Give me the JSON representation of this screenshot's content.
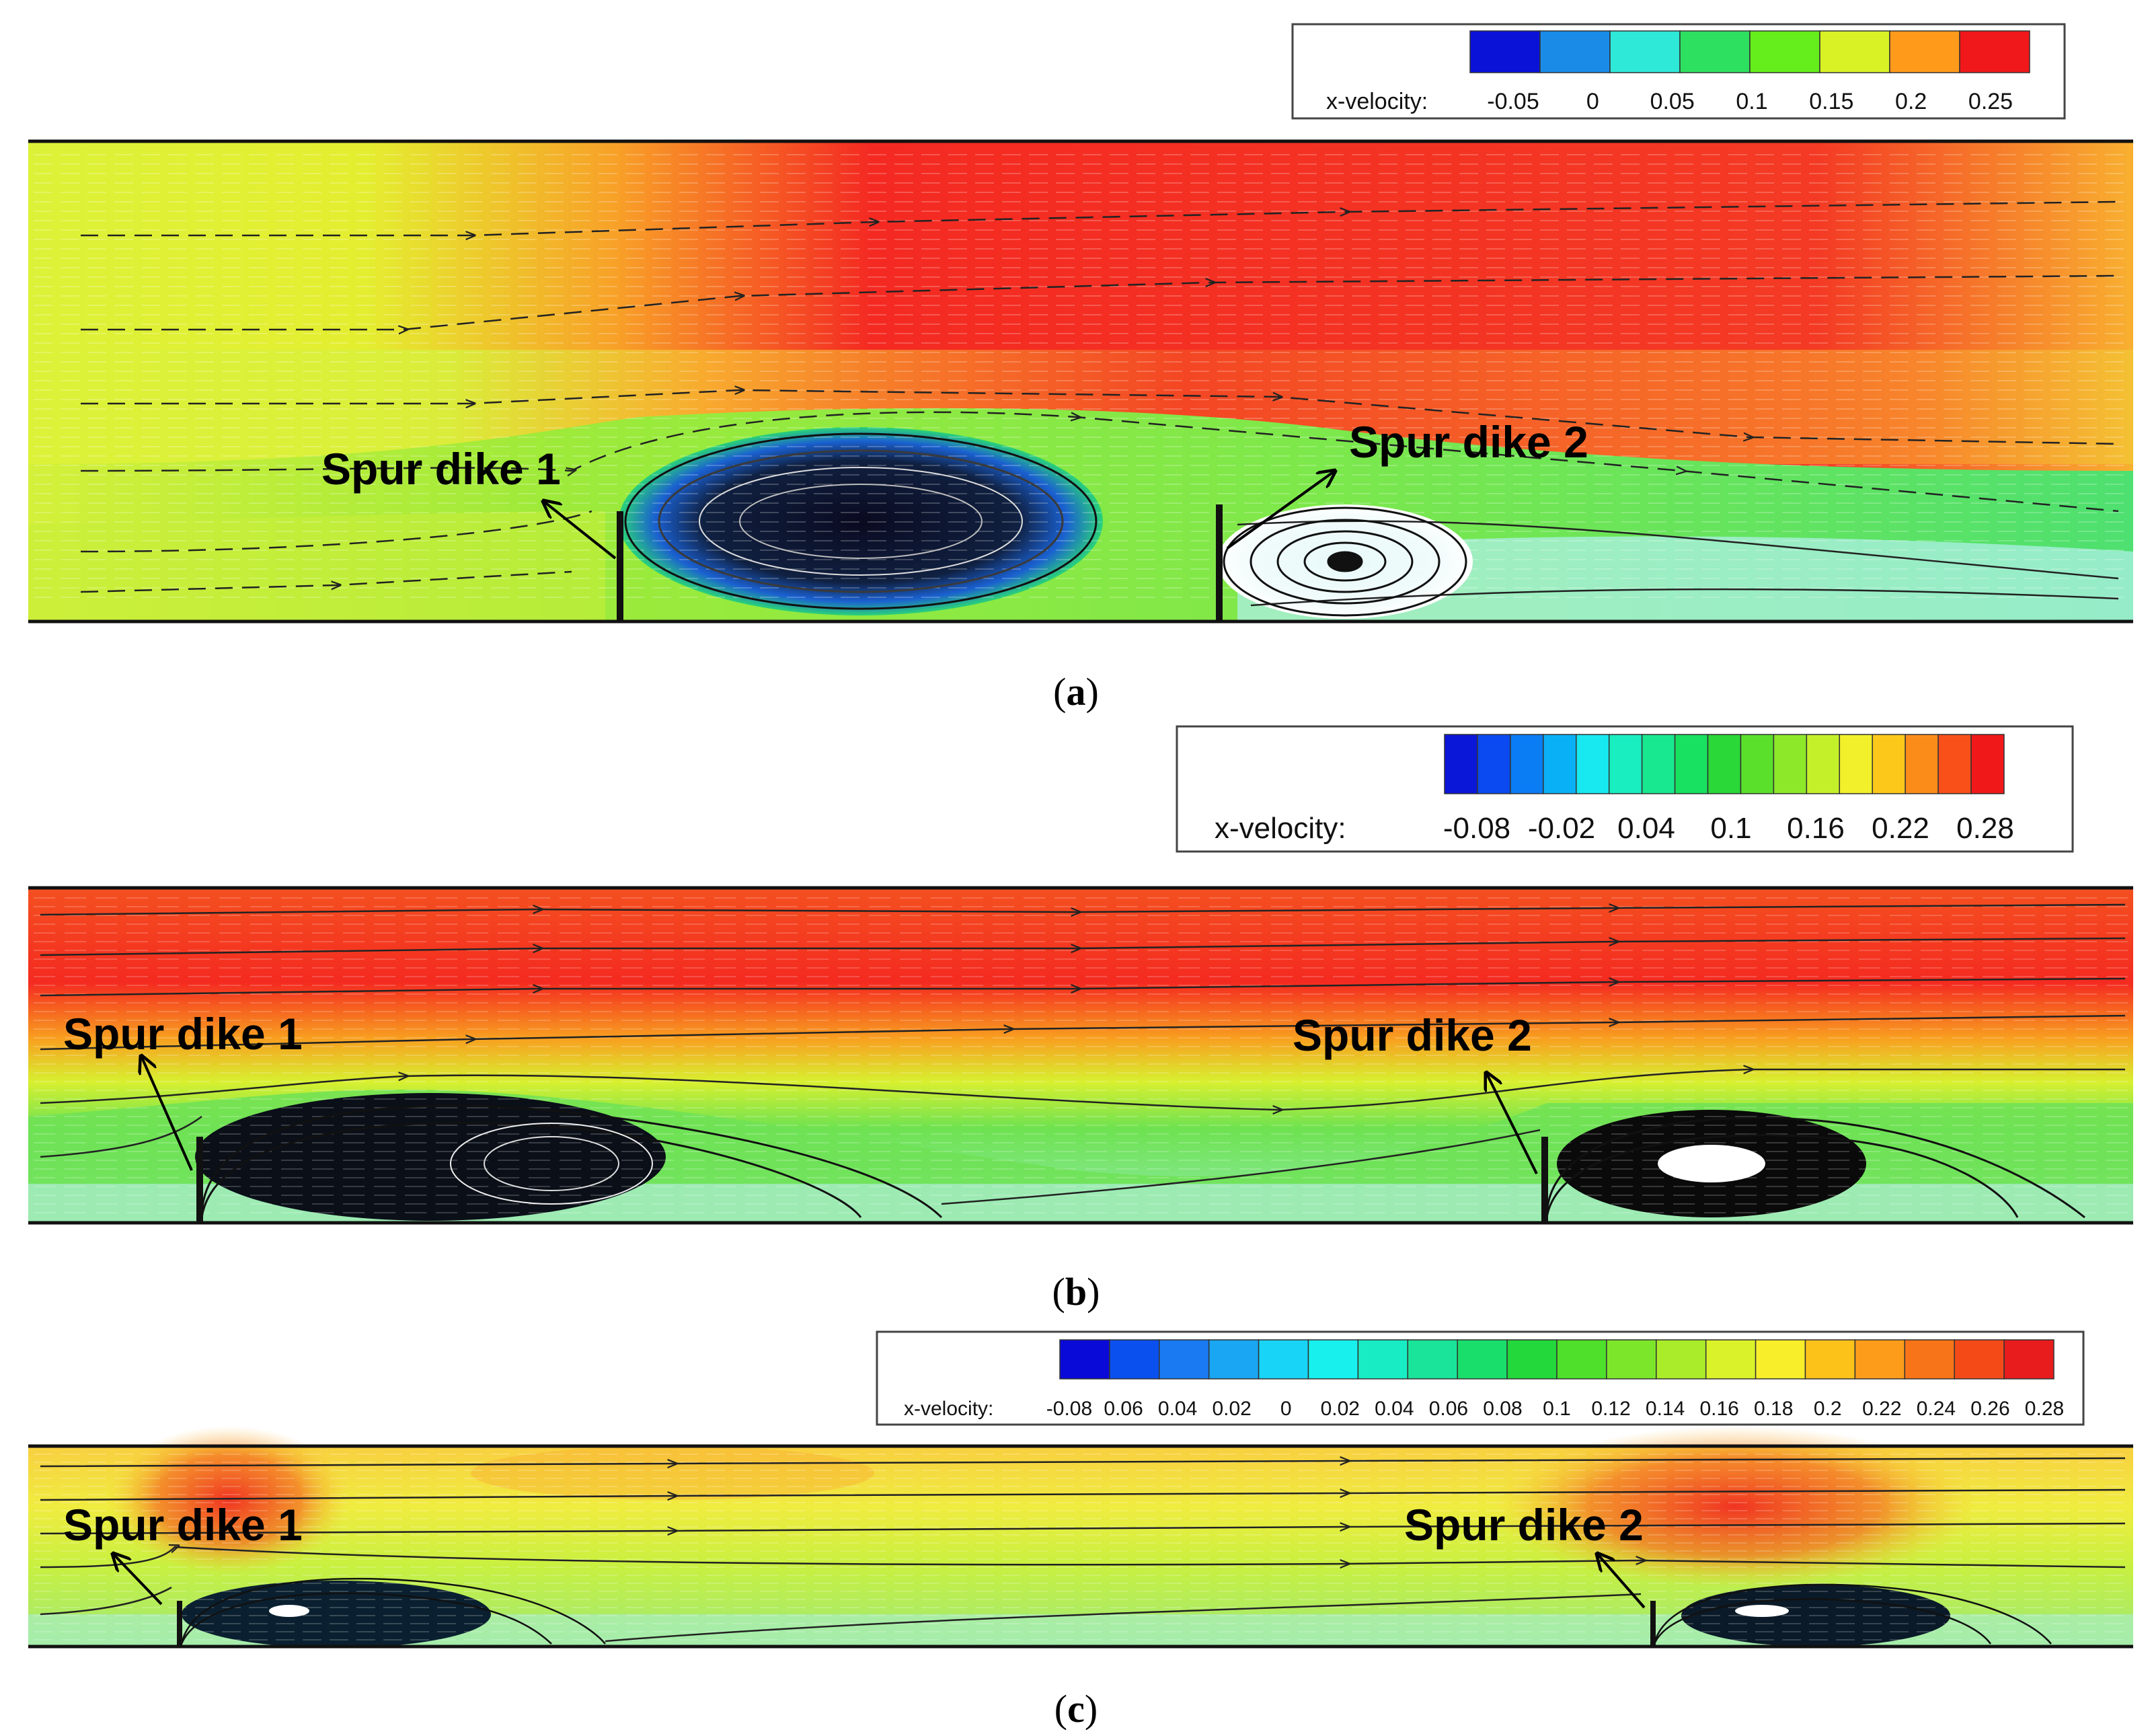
{
  "panels": [
    {
      "id": "a",
      "caption_letter": "a",
      "legend": {
        "label": "x-velocity:",
        "colors": [
          "#0a12d8",
          "#1a8ce8",
          "#2ee8d8",
          "#2ee060",
          "#66ee1c",
          "#d8f226",
          "#ff9a1a",
          "#f0181a"
        ],
        "ticks": [
          "-0.05",
          "0",
          "0.05",
          "0.1",
          "0.15",
          "0.2",
          "0.25"
        ]
      },
      "dike_labels": [
        "Spur dike 1",
        "Spur dike 2"
      ]
    },
    {
      "id": "b",
      "caption_letter": "b",
      "legend": {
        "label": "x-velocity:",
        "colors": [
          "#0a16d8",
          "#0a4af0",
          "#0a7cf4",
          "#0ab0f6",
          "#18e8f0",
          "#18eec0",
          "#18e890",
          "#18e060",
          "#2ad838",
          "#5ae02a",
          "#8ee82a",
          "#c4f02a",
          "#f2f02a",
          "#fcc81a",
          "#fc8c1a",
          "#f85018",
          "#f01818"
        ],
        "ticks": [
          "-0.08",
          "-0.02",
          "0.04",
          "0.1",
          "0.16",
          "0.22",
          "0.28"
        ]
      },
      "dike_labels": [
        "Spur dike 1",
        "Spur dike 2"
      ]
    },
    {
      "id": "c",
      "caption_letter": "c",
      "legend": {
        "label": "x-velocity:",
        "colors": [
          "#0a0ad8",
          "#0a50ee",
          "#1a7af2",
          "#1aa6f2",
          "#18d4f6",
          "#18f0ee",
          "#18ecc4",
          "#1ae49a",
          "#1ade6c",
          "#22d83a",
          "#4ee02a",
          "#7ce62a",
          "#aaec2a",
          "#daf22a",
          "#f8ee2a",
          "#fcc21a",
          "#fc9c1a",
          "#f87418",
          "#f44a18",
          "#e81c1c"
        ],
        "ticks": [
          "-0.08",
          "0.06",
          "0.04",
          "0.02",
          "0",
          "0.02",
          "0.04",
          "0.06",
          "0.08",
          "0.1",
          "0.12",
          "0.14",
          "0.16",
          "0.18",
          "0.2",
          "0.22",
          "0.24",
          "0.26",
          "0.28"
        ]
      },
      "dike_labels": [
        "Spur dike 1",
        "Spur dike 2"
      ]
    }
  ]
}
